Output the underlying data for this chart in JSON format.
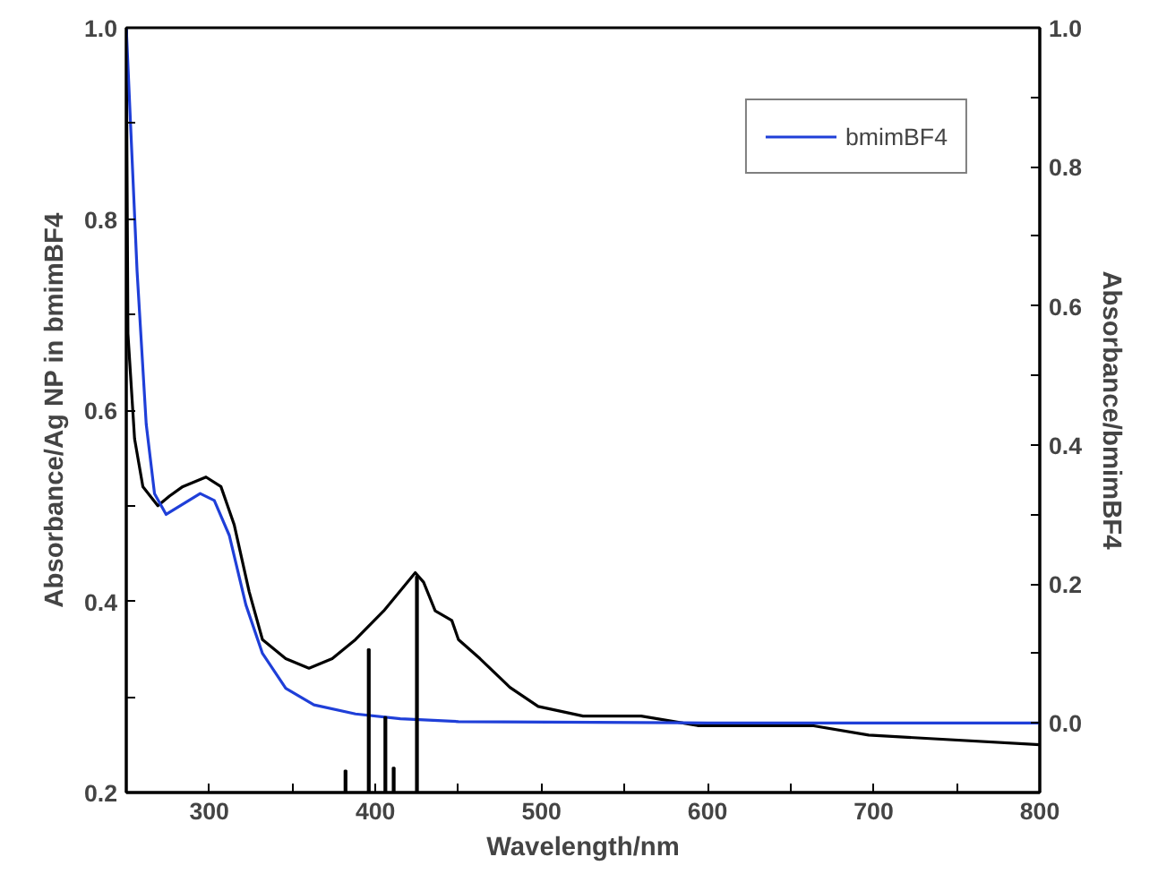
{
  "chart_data": {
    "type": "line",
    "xlabel": "Wavelength/nm",
    "ylabel": "Absorbance/Ag NP in bmimBF4",
    "y2label": "Absorbance/bmimBF4",
    "xlim": [
      250,
      800
    ],
    "xticks": [
      300,
      {
        "value": 350,
        "label": null
      },
      400,
      {
        "value": 450,
        "label": null
      },
      500,
      {
        "value": 550,
        "label": null
      },
      600,
      {
        "value": 650,
        "label": null
      },
      700,
      {
        "value": 750,
        "label": null
      },
      800
    ],
    "ylim": [
      0.2,
      1.0
    ],
    "yticks": [
      0.2,
      {
        "value": 0.3,
        "label": null
      },
      0.4,
      {
        "value": 0.5,
        "label": null
      },
      0.6,
      {
        "value": 0.7,
        "label": null
      },
      0.8,
      {
        "value": 0.9,
        "label": null
      },
      {
        "value": 1,
        "label": "1.0"
      }
    ],
    "y2lim": [
      -0.1,
      1.0
    ],
    "y2ticks": [
      {
        "value": 0,
        "label": "0.0"
      },
      {
        "value": 0.1,
        "label": null
      },
      0.2,
      {
        "value": 0.3,
        "label": null
      },
      0.4,
      {
        "value": 0.5,
        "label": null
      },
      0.6,
      {
        "value": 0.7,
        "label": null
      },
      0.8,
      {
        "value": 0.9,
        "label": null
      },
      {
        "value": 1,
        "label": "1.0"
      }
    ],
    "legend": "top right",
    "grid": false,
    "series": [
      {
        "color": "#000000",
        "x": [
          250,
          251,
          255,
          260,
          269,
          276,
          284,
          298,
          307,
          315,
          324,
          332,
          346,
          360,
          374,
          388,
          405,
          424,
          429,
          436,
          446,
          450,
          463,
          481,
          498,
          525,
          560,
          594,
          601,
          663,
          697,
          800
        ],
        "values": [
          1.0,
          0.68,
          0.57,
          0.52,
          0.5,
          0.51,
          0.52,
          0.53,
          0.52,
          0.48,
          0.41,
          0.36,
          0.34,
          0.33,
          0.34,
          0.36,
          0.39,
          0.43,
          0.42,
          0.39,
          0.38,
          0.36,
          0.34,
          0.31,
          0.29,
          0.28,
          0.28,
          0.27,
          0.27,
          0.27,
          0.26,
          0.25
        ]
      },
      {
        "type": "line",
        "name": "bmimBF4",
        "color": "#1f3fd8",
        "axis": "y2",
        "x": [
          250,
          256.5,
          262,
          267,
          274,
          294.5,
          303,
          312,
          322,
          332,
          346,
          363,
          388,
          415,
          450,
          600,
          800
        ],
        "values": [
          1.0,
          0.65,
          0.43,
          0.33,
          0.3,
          0.33,
          0.32,
          0.27,
          0.17,
          0.1,
          0.05,
          0.026,
          0.013,
          0.006,
          0.002,
          0.0,
          0.0
        ]
      },
      {
        "type": "bar",
        "color": "#000000",
        "x": [
          382,
          396,
          406,
          411,
          425
        ],
        "base": [
          0.2,
          0.2,
          0.2,
          0.2,
          0.2
        ],
        "values": [
          0.023,
          0.15,
          0.079,
          0.026,
          0.226
        ]
      }
    ]
  }
}
